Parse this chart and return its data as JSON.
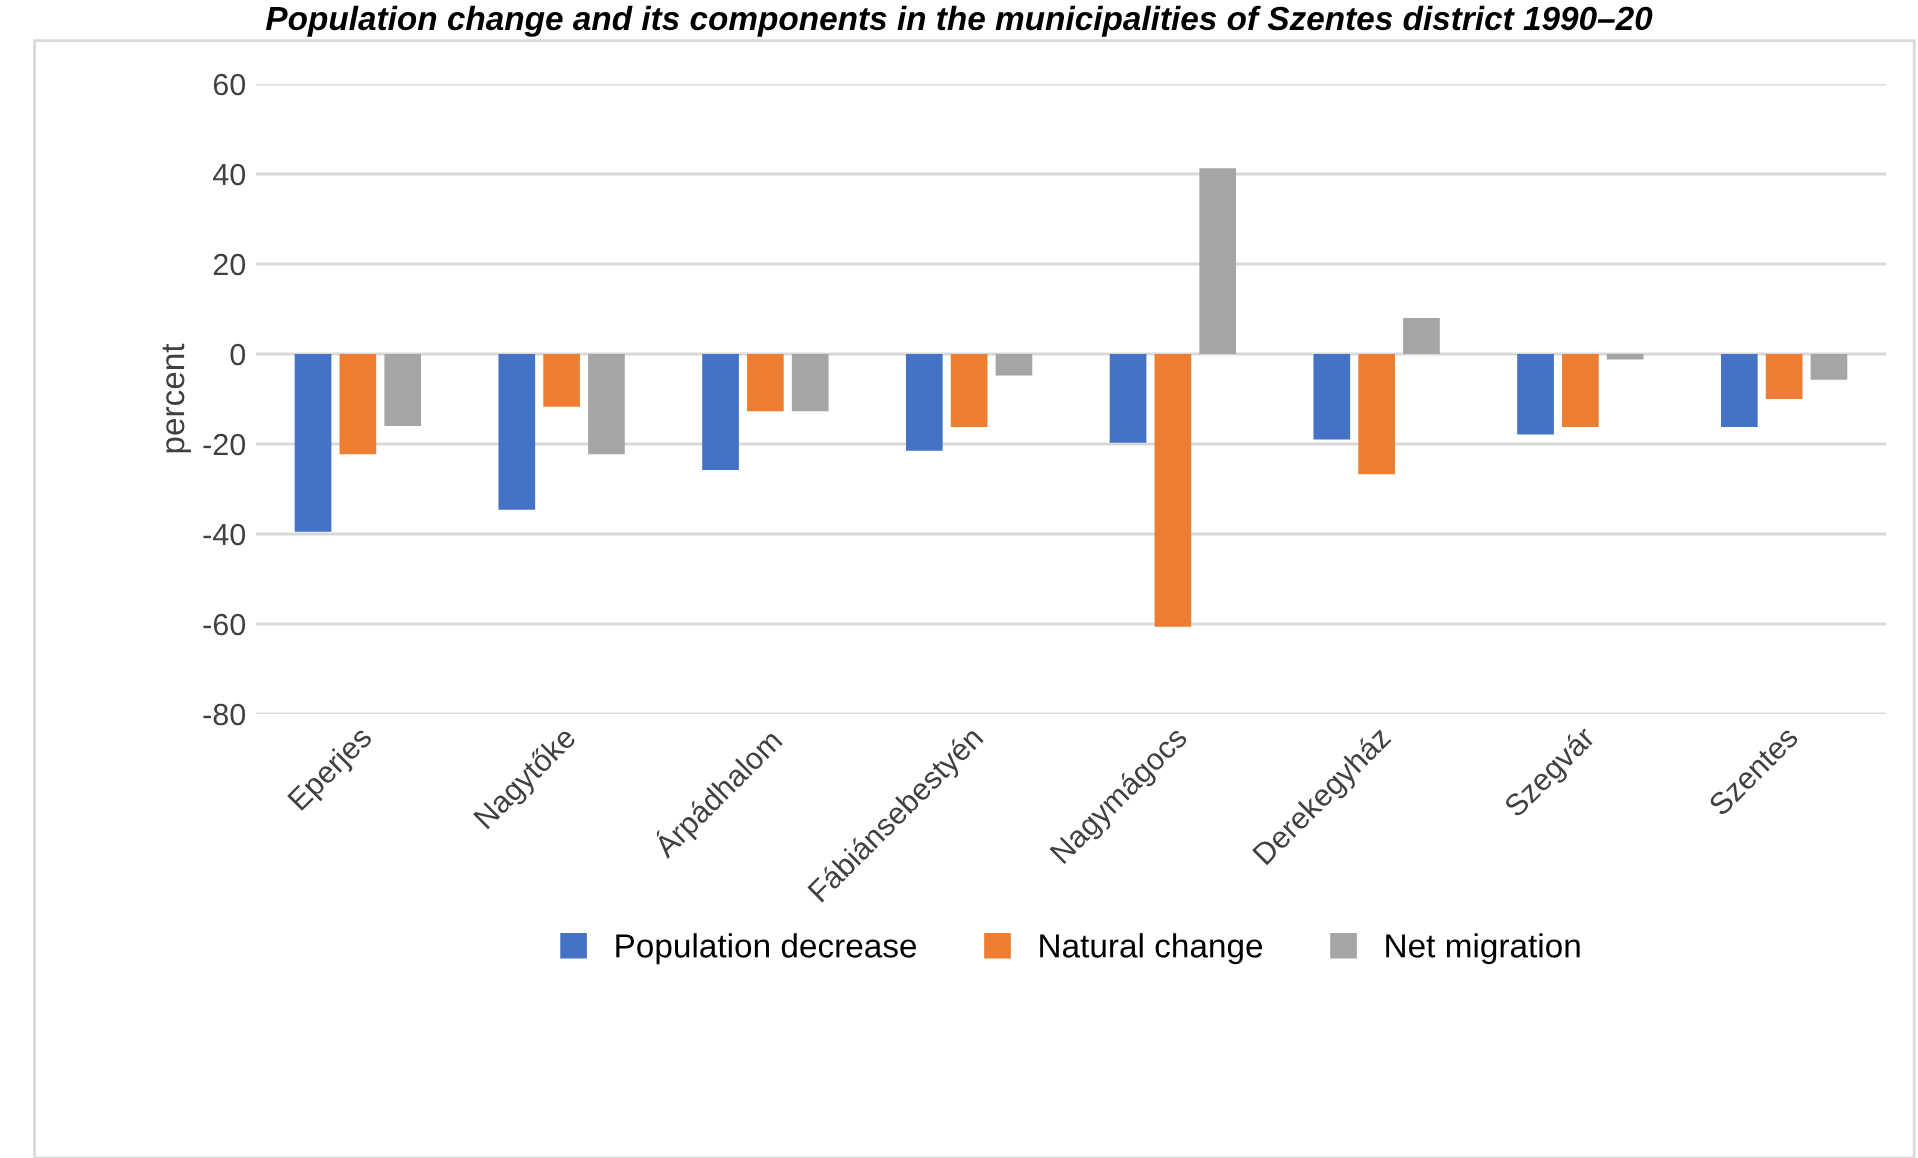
{
  "chart_data": {
    "type": "bar",
    "title": "Population change and its components in the municipalities of Szentes district 1990–20",
    "ylabel": "percent",
    "categories": [
      "Eperjes",
      "Nagytőke",
      "Árpádhalom",
      "Fábiánsebestyén",
      "Nagymágocs",
      "Derekegyház",
      "Szegvár",
      "Szentes"
    ],
    "series": [
      {
        "name": "Population decrease",
        "color": "#4472c4",
        "values": [
          -39.5,
          -34.6,
          -25.8,
          -21.5,
          -19.7,
          -19,
          -17.9,
          -16.2
        ]
      },
      {
        "name": "Natural change",
        "color": "#ed7d31",
        "values": [
          -22.3,
          -11.7,
          -12.7,
          -16.2,
          -60.6,
          -26.7,
          -16.2,
          -10
        ]
      },
      {
        "name": "Net migration",
        "color": "#a5a5a5",
        "values": [
          -16,
          -22.3,
          -12.7,
          -4.8,
          41.3,
          8,
          -1.2,
          -5.7
        ]
      }
    ],
    "ylim": [
      -80,
      60
    ],
    "yticks": [
      -80,
      -60,
      -40,
      -20,
      0,
      20,
      40,
      60
    ],
    "grid": "y",
    "legend": "bottom"
  }
}
